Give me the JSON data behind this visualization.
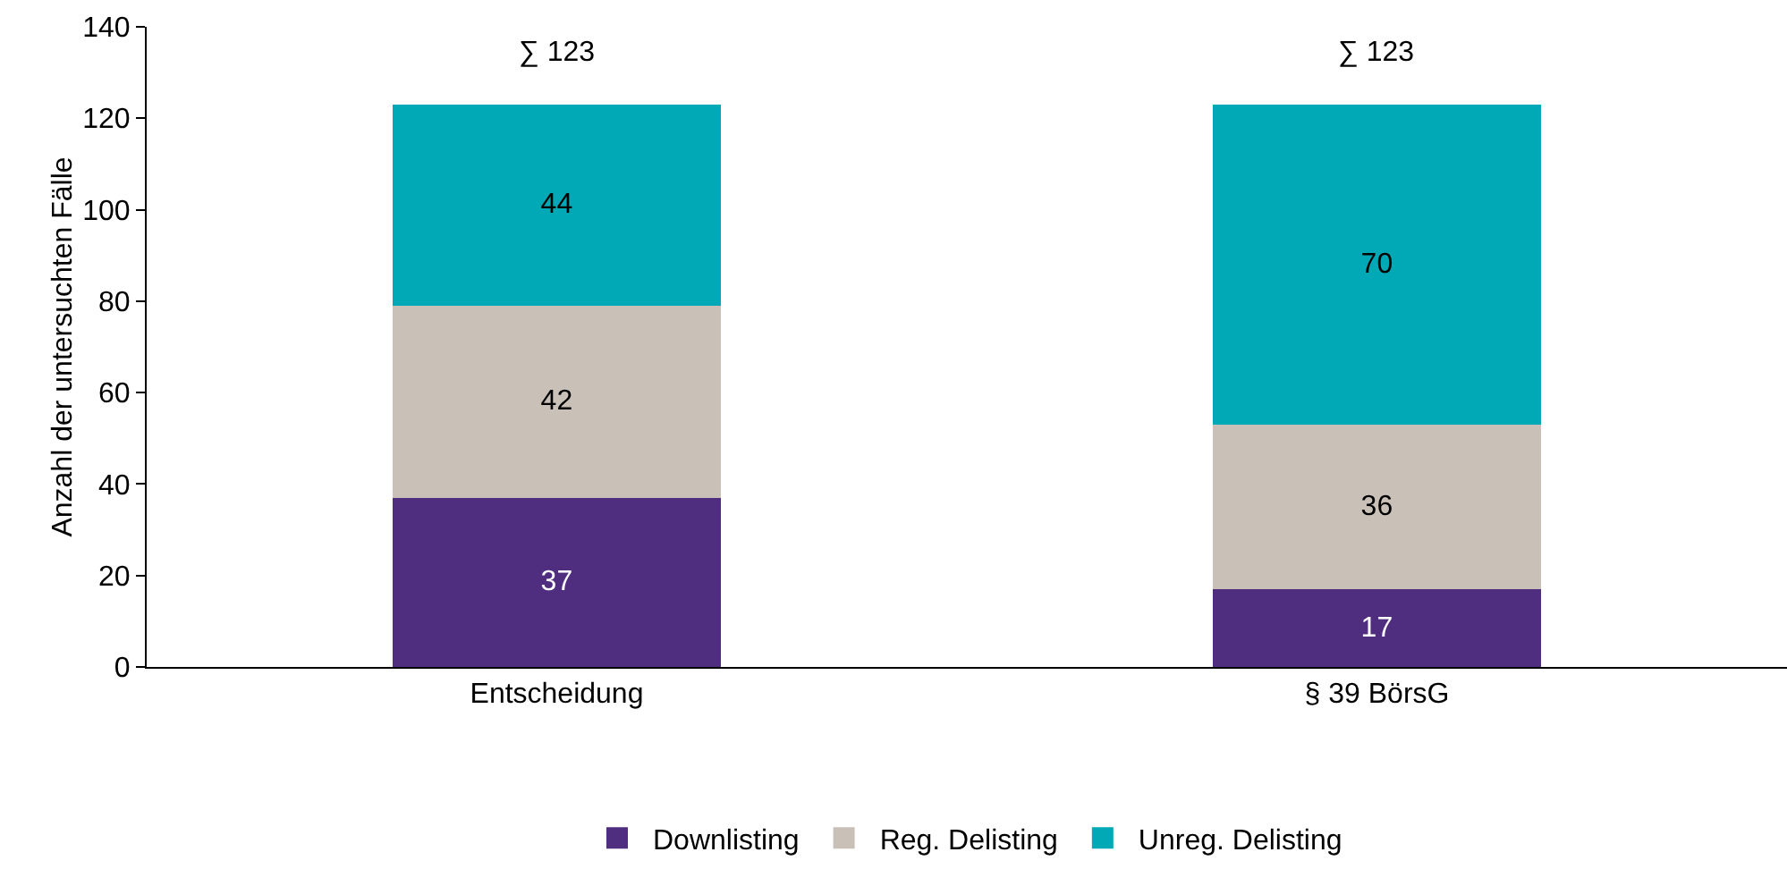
{
  "chart_data": {
    "type": "bar",
    "stacked": true,
    "ylabel": "Anzahl der untersuchten Fälle",
    "categories": [
      "Entscheidung",
      "§ 39 BörsG"
    ],
    "series": [
      {
        "name": "Downlisting",
        "color": "#4f2d7f",
        "values": [
          37,
          17
        ]
      },
      {
        "name": "Reg. Delisting",
        "color": "#c9c0b8",
        "values": [
          42,
          36
        ]
      },
      {
        "name": "Unreg. Delisting",
        "color": "#00a9b5",
        "values": [
          44,
          70
        ]
      }
    ],
    "ylim": [
      0,
      140
    ],
    "yticks": [
      0,
      20,
      40,
      60,
      80,
      100,
      120,
      140
    ],
    "grid": false,
    "legend": "bottom",
    "data_labels": true,
    "totals": [
      "∑ 123",
      "∑ 123"
    ]
  }
}
